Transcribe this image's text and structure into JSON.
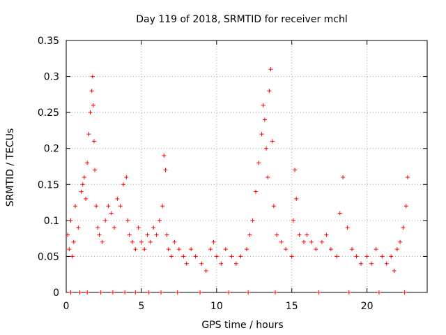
{
  "chart_data": {
    "type": "scatter",
    "title": "Day 119 of 2018, SRMTID for receiver mchl",
    "xlabel": "GPS time / hours",
    "ylabel": "SRMTID / TECUs",
    "xlim": [
      0,
      24
    ],
    "ylim": [
      0,
      0.35
    ],
    "xticks": [
      0,
      5,
      10,
      15,
      20
    ],
    "xtick_labels": [
      "0",
      "5",
      "10",
      "15",
      "20"
    ],
    "yticks": [
      0,
      0.05,
      0.1,
      0.15,
      0.2,
      0.25,
      0.3,
      0.35
    ],
    "ytick_labels": [
      "0",
      "0.05",
      "0.1",
      "0.15",
      "0.2",
      "0.25",
      "0.3",
      "0.35"
    ],
    "grid": true,
    "marker": "+",
    "series": [
      {
        "name": "SRMTID",
        "color": "#ff0000",
        "x": [
          0.1,
          0.2,
          0.3,
          0.4,
          0.5,
          0.6,
          0.8,
          1.0,
          1.1,
          1.2,
          1.3,
          1.4,
          1.5,
          1.6,
          1.7,
          1.75,
          1.8,
          1.85,
          1.9,
          2.0,
          2.1,
          2.2,
          2.4,
          2.6,
          2.8,
          3.0,
          3.2,
          3.4,
          3.6,
          3.8,
          4.0,
          4.1,
          4.2,
          4.4,
          4.6,
          4.8,
          5.0,
          5.2,
          5.4,
          5.6,
          5.8,
          6.0,
          6.2,
          6.4,
          6.5,
          6.6,
          6.7,
          6.8,
          7.0,
          7.2,
          7.5,
          7.8,
          8.0,
          8.3,
          8.6,
          9.0,
          9.3,
          9.6,
          9.8,
          10.0,
          10.3,
          10.6,
          11.0,
          11.3,
          11.6,
          12.0,
          12.2,
          12.4,
          12.6,
          12.8,
          13.0,
          13.1,
          13.2,
          13.3,
          13.4,
          13.5,
          13.6,
          13.7,
          13.8,
          14.0,
          14.3,
          14.6,
          15.0,
          15.1,
          15.2,
          15.3,
          15.5,
          15.8,
          16.0,
          16.3,
          16.6,
          17.0,
          17.3,
          17.6,
          18.0,
          18.2,
          18.4,
          18.7,
          19.0,
          19.3,
          19.6,
          20.0,
          20.3,
          20.6,
          21.0,
          21.3,
          21.6,
          21.8,
          22.0,
          22.2,
          22.4,
          22.6,
          22.7,
          0.3,
          0.9,
          1.4,
          2.3,
          3.1,
          3.9,
          4.6,
          5.5,
          6.3,
          7.4,
          8.9,
          10.8,
          12.1,
          13.9,
          16.8,
          18.8,
          20.8,
          22.5
        ],
        "y": [
          0.08,
          0.06,
          0.1,
          0.05,
          0.07,
          0.12,
          0.09,
          0.14,
          0.15,
          0.16,
          0.13,
          0.18,
          0.22,
          0.25,
          0.28,
          0.3,
          0.26,
          0.21,
          0.17,
          0.12,
          0.09,
          0.08,
          0.07,
          0.1,
          0.12,
          0.11,
          0.09,
          0.13,
          0.12,
          0.15,
          0.16,
          0.1,
          0.08,
          0.07,
          0.06,
          0.09,
          0.07,
          0.06,
          0.08,
          0.07,
          0.09,
          0.08,
          0.1,
          0.12,
          0.19,
          0.17,
          0.08,
          0.06,
          0.05,
          0.07,
          0.06,
          0.05,
          0.04,
          0.06,
          0.05,
          0.04,
          0.03,
          0.06,
          0.07,
          0.05,
          0.04,
          0.06,
          0.05,
          0.04,
          0.05,
          0.06,
          0.08,
          0.1,
          0.14,
          0.18,
          0.22,
          0.26,
          0.24,
          0.2,
          0.16,
          0.28,
          0.31,
          0.21,
          0.12,
          0.08,
          0.07,
          0.06,
          0.05,
          0.1,
          0.17,
          0.13,
          0.08,
          0.07,
          0.08,
          0.07,
          0.06,
          0.07,
          0.08,
          0.06,
          0.05,
          0.11,
          0.16,
          0.09,
          0.06,
          0.05,
          0.04,
          0.05,
          0.04,
          0.06,
          0.05,
          0.04,
          0.05,
          0.03,
          0.06,
          0.07,
          0.09,
          0.12,
          0.16,
          0,
          0,
          0,
          0,
          0,
          0,
          0,
          0,
          0,
          0,
          0,
          0,
          0,
          0,
          0,
          0,
          0,
          0
        ]
      }
    ]
  }
}
